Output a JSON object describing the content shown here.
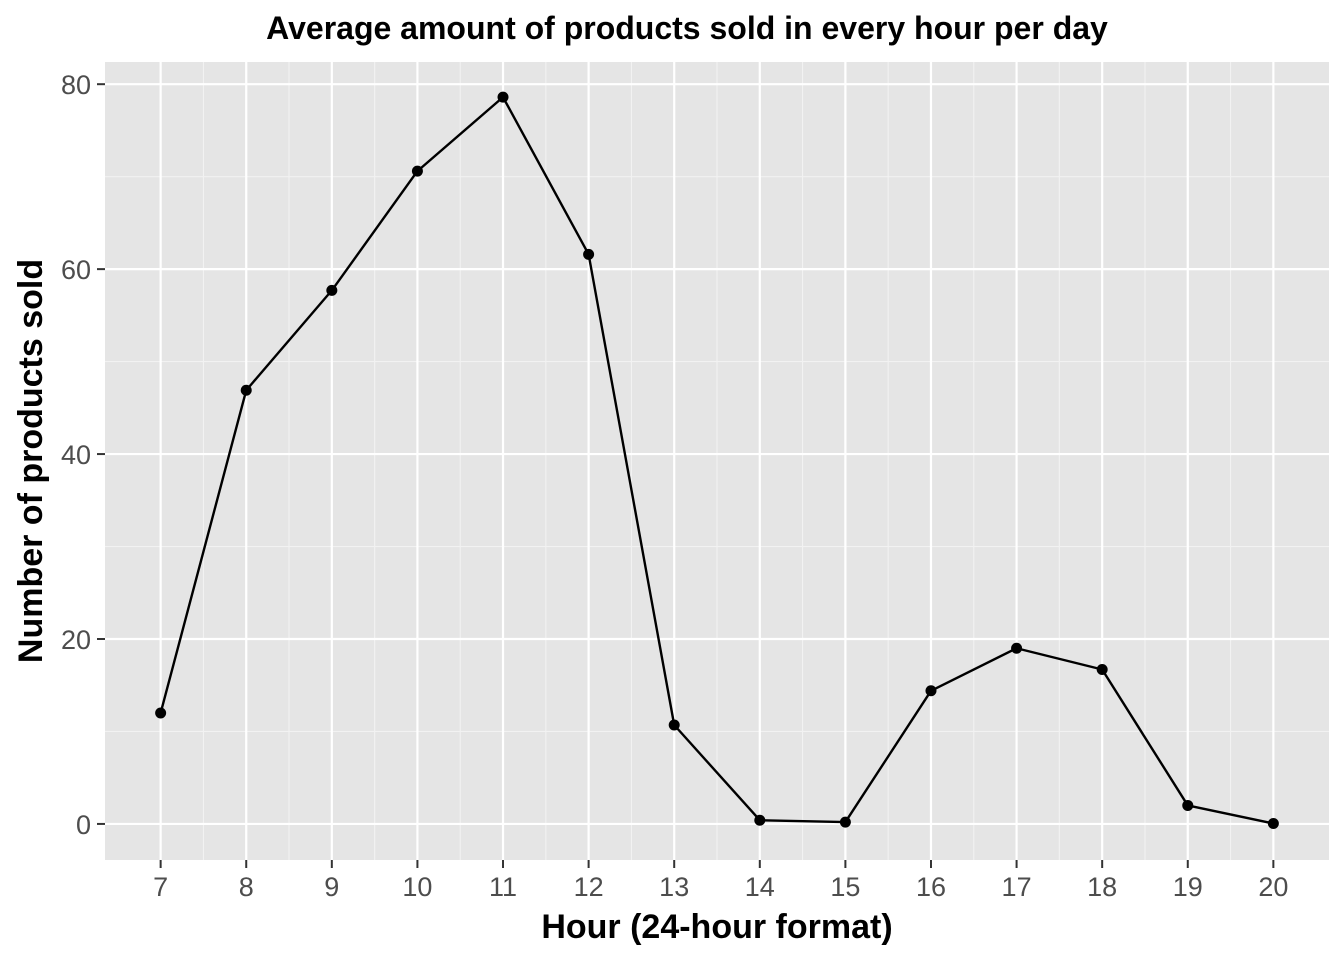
{
  "chart_data": {
    "type": "line",
    "title": "Average amount of products sold in every hour per day",
    "xlabel": "Hour (24-hour format)",
    "ylabel": "Number of products sold",
    "x": [
      7,
      8,
      9,
      10,
      11,
      12,
      13,
      14,
      15,
      16,
      17,
      18,
      19,
      20
    ],
    "x_tick_labels": [
      "7",
      "8",
      "9",
      "10",
      "11",
      "12",
      "13",
      "14",
      "15",
      "16",
      "17",
      "18",
      "19",
      "20"
    ],
    "y_ticks": [
      0,
      20,
      40,
      60,
      80
    ],
    "y_tick_labels": [
      "0",
      "20",
      "40",
      "60",
      "80"
    ],
    "xlim": [
      6.35,
      20.65
    ],
    "ylim": [
      -3.9,
      82.4
    ],
    "series": [
      {
        "values": [
          12.0,
          46.9,
          57.7,
          70.6,
          78.6,
          61.6,
          10.7,
          0.4,
          0.2,
          14.4,
          19.0,
          16.7,
          2.0,
          0.05
        ]
      }
    ],
    "grid": true,
    "legend": "none",
    "colors": {
      "panel_background": "#e5e5e5",
      "grid_major": "#ffffff",
      "grid_minor": "#f2f2f2",
      "line": "#000000",
      "point": "#000000",
      "tick_label": "#4d4d4d",
      "tick_mark": "#333333"
    }
  }
}
